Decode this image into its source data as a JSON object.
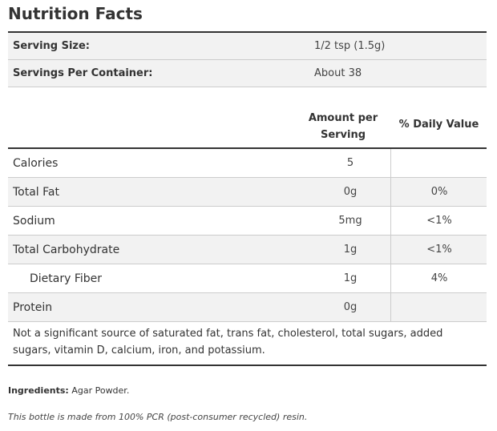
{
  "title": "Nutrition Facts",
  "serving": {
    "size_label": "Serving Size:",
    "size_value": "1/2 tsp (1.5g)",
    "per_container_label": "Servings Per Container:",
    "per_container_value": "About 38"
  },
  "table_header": {
    "amount_line1": "Amount per",
    "amount_line2": "Serving",
    "daily_value": "% Daily Value"
  },
  "nutrients": [
    {
      "name": "Calories",
      "amount": "5",
      "dv": ""
    },
    {
      "name": "Total Fat",
      "amount": "0g",
      "dv": "0%"
    },
    {
      "name": "Sodium",
      "amount": "5mg",
      "dv": "<1%"
    },
    {
      "name": "Total Carbohydrate",
      "amount": "1g",
      "dv": "<1%"
    },
    {
      "name": "Dietary Fiber",
      "amount": "1g",
      "dv": "4%"
    },
    {
      "name": "Protein",
      "amount": "0g",
      "dv": ""
    }
  ],
  "footnote": "Not a significant source of saturated fat, trans fat, cholesterol, total sugars, added sugars, vitamin D, calcium, iron, and potassium.",
  "ingredients": {
    "label": "Ingredients:",
    "value": " Agar Powder."
  },
  "pcr_note": "This bottle is made from 100% PCR (post-consumer recycled) resin."
}
